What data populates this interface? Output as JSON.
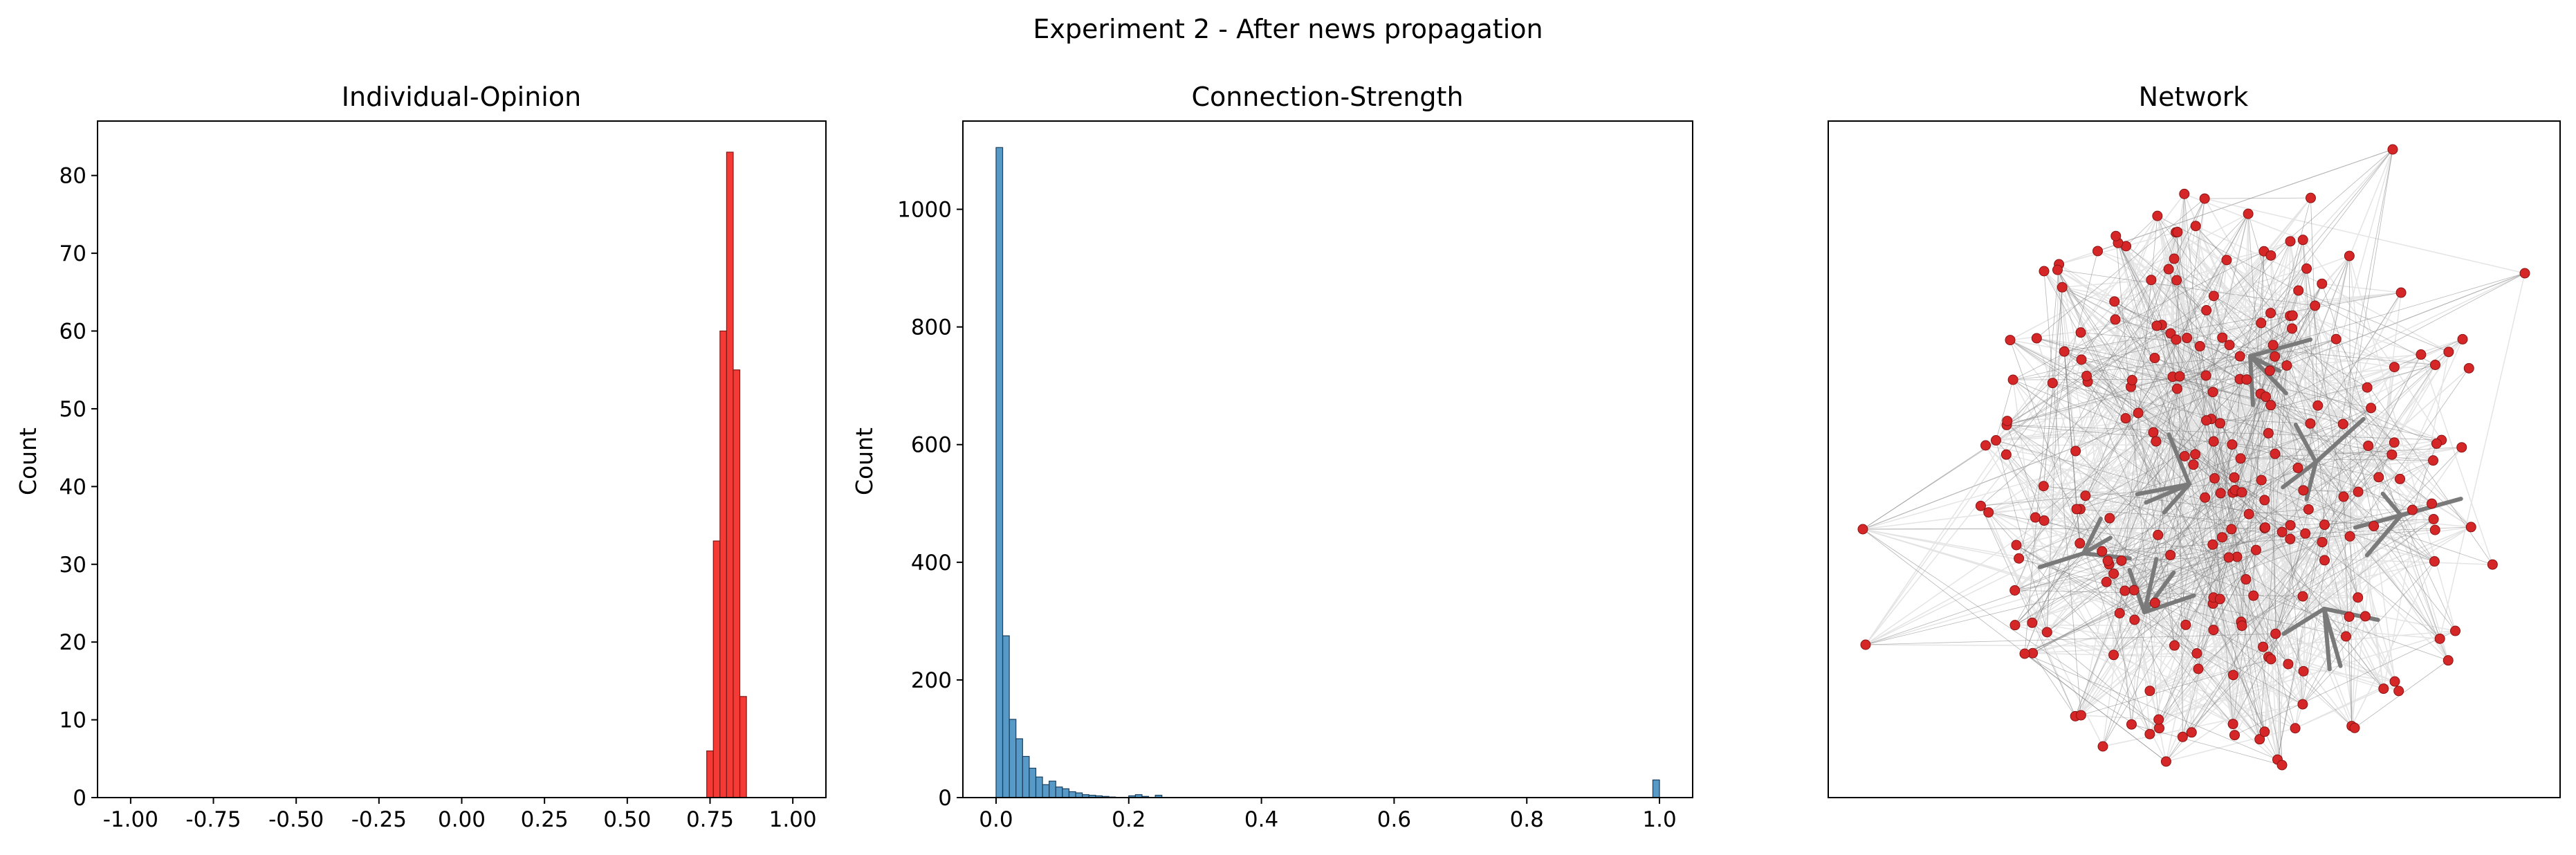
{
  "figure": {
    "suptitle": "Experiment 2 - After news propagation"
  },
  "chart_data": [
    {
      "type": "bar",
      "title": "Individual-Opinion",
      "xlabel": "",
      "ylabel": "Count",
      "xlim": [
        -1.1,
        1.1
      ],
      "ylim": [
        0,
        87
      ],
      "bin_edges": [
        0.74,
        0.76,
        0.78,
        0.8,
        0.82,
        0.84,
        0.86
      ],
      "values": [
        6,
        33,
        60,
        83,
        55,
        13
      ],
      "color": "#f4231f",
      "xticks": [
        "-1.00",
        "-0.75",
        "-0.50",
        "-0.25",
        "0.00",
        "0.25",
        "0.50",
        "0.75",
        "1.00"
      ],
      "yticks": [
        "0",
        "10",
        "20",
        "30",
        "40",
        "50",
        "60",
        "70",
        "80"
      ]
    },
    {
      "type": "bar",
      "title": "Connection-Strength",
      "xlabel": "",
      "ylabel": "Count",
      "xlim": [
        -0.05,
        1.05
      ],
      "ylim": [
        0,
        1150
      ],
      "bin_edges": [
        0.0,
        0.01,
        0.02,
        0.03,
        0.04,
        0.05,
        0.06,
        0.07,
        0.08,
        0.09,
        0.1,
        0.11,
        0.12,
        0.13,
        0.14,
        0.15,
        0.16,
        0.17,
        0.18,
        0.19,
        0.2,
        0.21,
        0.22,
        0.23,
        0.24,
        0.25
      ],
      "values": [
        1105,
        275,
        133,
        100,
        70,
        50,
        35,
        22,
        28,
        18,
        15,
        10,
        8,
        5,
        4,
        3,
        2,
        1,
        0,
        0,
        3,
        5,
        2,
        0,
        4
      ],
      "extra_bin": {
        "start": 0.99,
        "end": 1.0,
        "value": 30
      },
      "color": "#1f77b4",
      "xticks": [
        "0.0",
        "0.2",
        "0.4",
        "0.6",
        "0.8",
        "1.0"
      ],
      "yticks": [
        "0",
        "200",
        "400",
        "600",
        "800",
        "1000"
      ]
    },
    {
      "type": "network",
      "title": "Network",
      "node_color": "#d62728",
      "edge_color": "#7a7a7a"
    }
  ]
}
